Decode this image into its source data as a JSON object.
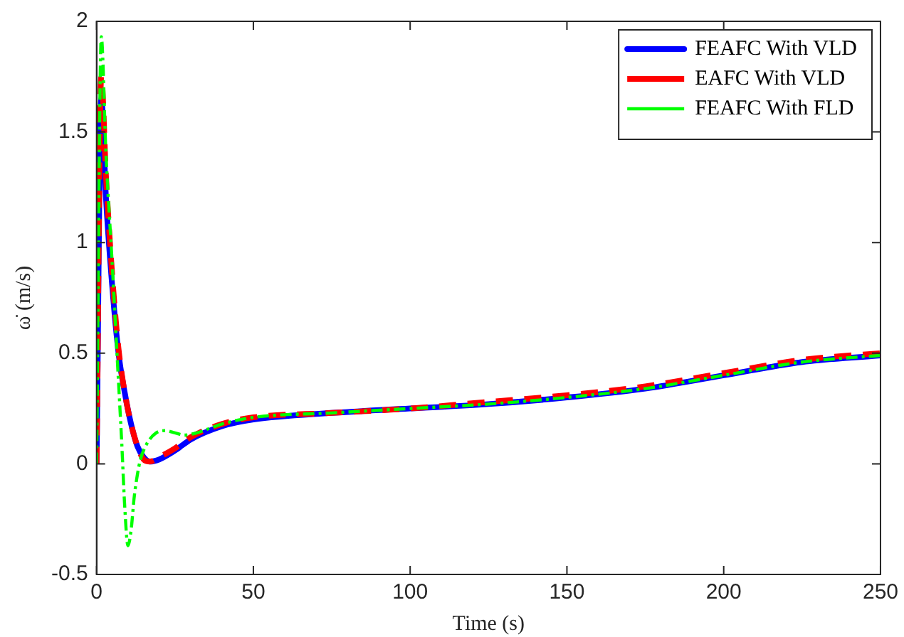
{
  "chart_data": {
    "type": "line",
    "xlabel": "Time (s)",
    "ylabel": "ω̇ (m/s)",
    "xlim": [
      0,
      250
    ],
    "xticks": [
      0,
      50,
      100,
      150,
      200,
      250
    ],
    "ylim": [
      -0.5,
      2
    ],
    "yticks": [
      -0.5,
      0,
      0.5,
      1,
      1.5,
      2
    ],
    "grid": false,
    "legend": "top right",
    "marker": "none",
    "series": [
      {
        "name": "FEAFC With VLD",
        "color": "#0000ff",
        "line_style": "solid",
        "x": [
          0,
          1.5,
          3,
          5,
          7,
          9,
          11,
          13,
          15,
          17,
          20,
          25,
          30,
          40,
          50,
          75,
          100,
          125,
          150,
          175,
          200,
          225,
          250
        ],
        "values": [
          0,
          1.65,
          1.2,
          0.8,
          0.5,
          0.32,
          0.18,
          0.08,
          0.03,
          0.01,
          0.02,
          0.06,
          0.11,
          0.17,
          0.2,
          0.23,
          0.25,
          0.27,
          0.3,
          0.34,
          0.4,
          0.46,
          0.49
        ]
      },
      {
        "name": "EAFC With VLD",
        "color": "#ff0000",
        "line_style": "dashed",
        "x": [
          0,
          1.5,
          3,
          5,
          7,
          9,
          11,
          13,
          15,
          17,
          20,
          25,
          30,
          40,
          50,
          75,
          100,
          125,
          150,
          175,
          200,
          225,
          250
        ],
        "values": [
          0,
          1.75,
          1.3,
          0.85,
          0.52,
          0.32,
          0.18,
          0.08,
          0.02,
          0.01,
          0.03,
          0.07,
          0.12,
          0.18,
          0.21,
          0.23,
          0.25,
          0.28,
          0.31,
          0.35,
          0.41,
          0.47,
          0.5
        ]
      },
      {
        "name": "FEAFC With FLD",
        "color": "#00ff00",
        "line_style": "dotted",
        "x": [
          0,
          1.5,
          3,
          5,
          6.5,
          8,
          9,
          10,
          11,
          12,
          13,
          14,
          16,
          19,
          22,
          25,
          28,
          32,
          36,
          40,
          50,
          75,
          100,
          125,
          150,
          175,
          200,
          225,
          250
        ],
        "values": [
          0,
          1.93,
          1.4,
          0.9,
          0.5,
          0.1,
          -0.2,
          -0.37,
          -0.3,
          -0.15,
          -0.05,
          0.02,
          0.09,
          0.14,
          0.15,
          0.14,
          0.13,
          0.14,
          0.16,
          0.18,
          0.21,
          0.23,
          0.25,
          0.27,
          0.3,
          0.34,
          0.4,
          0.46,
          0.49
        ]
      }
    ]
  }
}
